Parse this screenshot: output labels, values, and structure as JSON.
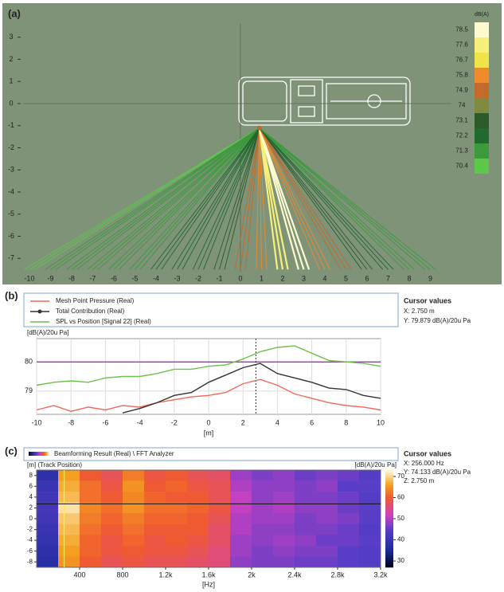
{
  "chart_data": [
    {
      "type": "ray",
      "label": "(a)",
      "xlim": [
        -10.3,
        10
      ],
      "ylim": [
        -7.6,
        3.6
      ],
      "xticks": [
        -10,
        -9,
        -8,
        -7,
        -6,
        -5,
        -4,
        -3,
        -2,
        -1,
        0,
        1,
        2,
        3,
        4,
        5,
        6,
        7,
        8,
        9
      ],
      "yticks": [
        3,
        2,
        1,
        0,
        -1,
        -2,
        -3,
        -4,
        -5,
        -6,
        -7
      ],
      "source": {
        "x": 0.9,
        "y": -1.1
      },
      "ray_end_y": -7.5,
      "rays": {
        "x": [
          -10,
          -9,
          -8,
          -7,
          -6,
          -5,
          -4,
          -3,
          -2,
          -1,
          0,
          1,
          2,
          3,
          4,
          5,
          6,
          7,
          8,
          9
        ],
        "levels": [
          70.8,
          70.9,
          71.0,
          71.2,
          71.4,
          71.6,
          71.8,
          72.0,
          72.5,
          73.5,
          74.5,
          75.5,
          77.5,
          78.3,
          76.2,
          74.8,
          73.0,
          72.0,
          71.5,
          71.0
        ]
      },
      "colorbar": {
        "title": "dB(A)",
        "ticks": [
          78.5,
          77.6,
          76.7,
          75.8,
          74.9,
          74.0,
          73.1,
          72.2,
          71.3,
          70.4
        ],
        "colors": [
          "#fffbd0",
          "#f7f07a",
          "#f0e44a",
          "#f08a2a",
          "#c26a2a",
          "#7f8a3e",
          "#2c5a2a",
          "#1f6a2e",
          "#3b9a3c",
          "#5cc84a"
        ]
      }
    },
    {
      "type": "line",
      "label": "(b)",
      "ylabel": "[dB(A)/20u Pa]",
      "xlabel": "[m]",
      "xlim": [
        -10,
        10
      ],
      "ylim": [
        78.2,
        80.8
      ],
      "xticks": [
        -10,
        -8,
        -6,
        -4,
        -2,
        0,
        2,
        4,
        6,
        8,
        10
      ],
      "yticks": [
        79,
        80
      ],
      "grid": true,
      "x": [
        -10,
        -9,
        -8,
        -7,
        -6,
        -5,
        -4,
        -3,
        -2,
        -1,
        0,
        1,
        2,
        3,
        4,
        5,
        6,
        7,
        8,
        9,
        10
      ],
      "series": [
        {
          "name": "Mesh Point Pressure (Real)",
          "color": "#f06a5a",
          "values": [
            78.35,
            78.5,
            78.3,
            78.45,
            78.35,
            78.5,
            78.45,
            78.6,
            78.7,
            78.8,
            78.85,
            78.95,
            79.25,
            79.4,
            79.2,
            78.9,
            78.75,
            78.6,
            78.5,
            78.45,
            78.35
          ]
        },
        {
          "name": "Total Contribution (Real)",
          "color": "#333333",
          "values": [
            null,
            null,
            null,
            null,
            null,
            78.25,
            78.4,
            78.6,
            78.85,
            78.95,
            79.3,
            79.55,
            79.8,
            79.95,
            79.6,
            79.45,
            79.3,
            79.1,
            79.05,
            78.85,
            78.75
          ]
        },
        {
          "name": "SPL vs Position [Signal 22] (Real)",
          "color": "#6cc24a",
          "values": [
            79.2,
            79.3,
            79.35,
            79.3,
            79.45,
            79.5,
            79.5,
            79.6,
            79.75,
            79.75,
            79.85,
            79.9,
            80.1,
            80.35,
            80.5,
            80.55,
            80.3,
            80.05,
            80.0,
            79.95,
            79.85
          ]
        }
      ],
      "hline": 80,
      "cursor": 2.75,
      "cursor_title": "Cursor values",
      "cursor_lines": [
        "X: 2.750 m",
        "Y: 79.879 dB(A)/20u Pa"
      ]
    },
    {
      "type": "heatmap",
      "label": "(c)",
      "legend": "Beamforming Result (Real) \\ FFT Analyzer",
      "ylabel": "[m] (Track Position)",
      "xlabel": "[Hz]",
      "zlabel": "[dB(A)/20u Pa]",
      "xlim": [
        0,
        3200
      ],
      "ylim": [
        -9,
        9
      ],
      "xticks": [
        400,
        800,
        {
          "value": 1200,
          "label": "1.2k"
        },
        {
          "value": 1600,
          "label": "1.6k"
        },
        {
          "value": 2000,
          "label": "2k"
        },
        {
          "value": 2400,
          "label": "2.4k"
        },
        {
          "value": 2800,
          "label": "2.8k"
        },
        {
          "value": 3200,
          "label": "3.2k"
        }
      ],
      "yticks": [
        8,
        6,
        4,
        2,
        0,
        -2,
        -4,
        -6,
        -8
      ],
      "zlim": [
        27,
        73
      ],
      "zticks": [
        70,
        60,
        50,
        40,
        30
      ],
      "x": [
        100,
        300,
        500,
        700,
        900,
        1100,
        1300,
        1500,
        1700,
        1900,
        2100,
        2300,
        2500,
        2700,
        2900,
        3100
      ],
      "y": [
        8,
        6,
        4,
        2,
        0,
        -2,
        -4,
        -6,
        -8
      ],
      "values": [
        [
          38,
          66,
          60,
          58,
          63,
          59,
          60,
          58,
          57,
          49,
          47,
          48,
          46,
          47,
          46,
          44
        ],
        [
          40,
          67,
          62,
          59,
          65,
          60,
          61,
          59,
          58,
          50,
          48,
          48,
          47,
          48,
          45,
          45
        ],
        [
          41,
          68,
          62,
          60,
          64,
          61,
          60,
          60,
          58,
          51,
          48,
          49,
          47,
          47,
          46,
          44
        ],
        [
          42,
          71,
          64,
          62,
          65,
          62,
          62,
          61,
          59,
          51,
          49,
          50,
          48,
          48,
          46,
          45
        ],
        [
          41,
          69,
          63,
          61,
          63,
          61,
          61,
          60,
          58,
          50,
          49,
          49,
          47,
          48,
          47,
          45
        ],
        [
          40,
          68,
          62,
          60,
          62,
          60,
          60,
          60,
          57,
          50,
          48,
          48,
          47,
          47,
          46,
          44
        ],
        [
          39,
          67,
          61,
          59,
          61,
          59,
          60,
          59,
          57,
          49,
          48,
          49,
          48,
          46,
          46,
          45
        ],
        [
          38,
          66,
          61,
          59,
          60,
          59,
          59,
          58,
          56,
          49,
          47,
          48,
          47,
          47,
          45,
          44
        ],
        [
          37,
          65,
          60,
          58,
          59,
          58,
          58,
          57,
          56,
          48,
          47,
          47,
          46,
          46,
          45,
          44
        ]
      ],
      "cursor": {
        "x": 256,
        "y": 2.75
      },
      "cursor_title": "Cursor values",
      "cursor_lines": [
        "X: 256.000 Hz",
        "Y: 74.133 dB(A)/20u Pa",
        "Z: 2.750 m"
      ]
    }
  ]
}
